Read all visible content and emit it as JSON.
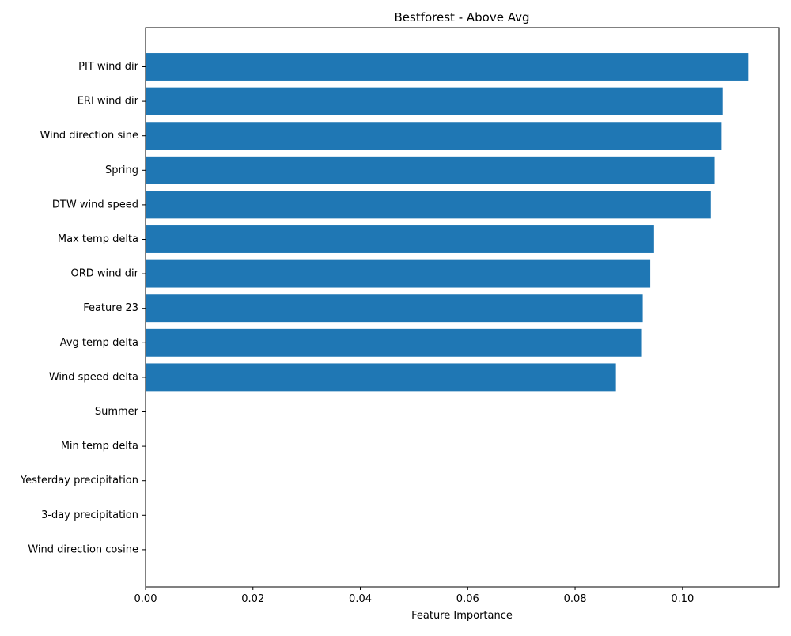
{
  "chart_data": {
    "type": "bar",
    "orientation": "horizontal",
    "title": "Bestforest - Above Avg",
    "xlabel": "Feature Importance",
    "ylabel": "",
    "categories": [
      "PIT wind dir",
      "ERI wind dir",
      "Wind direction sine",
      "Spring",
      "DTW wind speed",
      "Max temp delta",
      "ORD wind dir",
      "Feature 23",
      "Avg temp delta",
      "Wind speed delta",
      "Summer",
      "Min temp delta",
      "Yesterday precipitation",
      "3-day precipitation",
      "Wind direction cosine"
    ],
    "values": [
      0.1123,
      0.1075,
      0.1073,
      0.106,
      0.1053,
      0.0947,
      0.094,
      0.0926,
      0.0923,
      0.0876,
      0,
      0,
      0,
      0,
      0
    ],
    "xlim": [
      0,
      0.118
    ],
    "xticks": [
      0.0,
      0.02,
      0.04,
      0.06,
      0.08,
      0.1
    ],
    "xtick_labels": [
      "0.00",
      "0.02",
      "0.04",
      "0.06",
      "0.08",
      "0.10"
    ],
    "bar_color": "#1f77b4",
    "grid": false,
    "legend": "none"
  }
}
